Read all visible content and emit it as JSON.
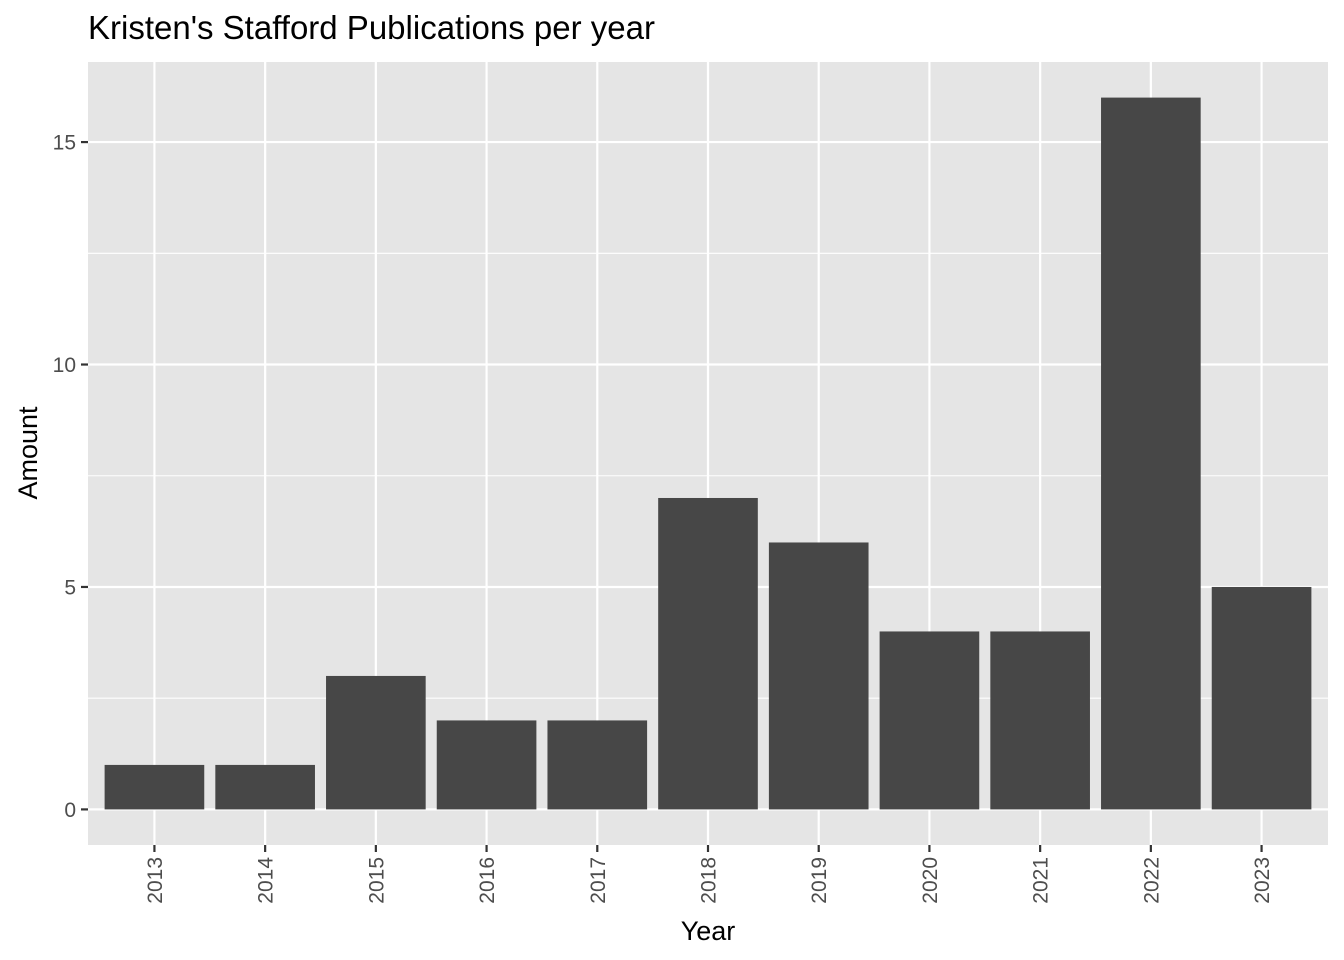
{
  "chart_data": {
    "type": "bar",
    "title": "Kristen's Stafford Publications per year",
    "xlabel": "Year",
    "ylabel": "Amount",
    "categories": [
      "2013",
      "2014",
      "2015",
      "2016",
      "2017",
      "2018",
      "2019",
      "2020",
      "2021",
      "2022",
      "2023"
    ],
    "values": [
      1,
      1,
      3,
      2,
      2,
      7,
      6,
      4,
      4,
      16,
      5
    ],
    "ylim": [
      -0.8,
      16.8
    ],
    "yticks": [
      0,
      5,
      10,
      15
    ],
    "ytick_labels": [
      "0",
      "5",
      "10",
      "15"
    ],
    "grid": true,
    "legend": "none",
    "colors": {
      "bar": "#474747",
      "panel": "#e5e5e5",
      "grid": "#ffffff"
    }
  }
}
